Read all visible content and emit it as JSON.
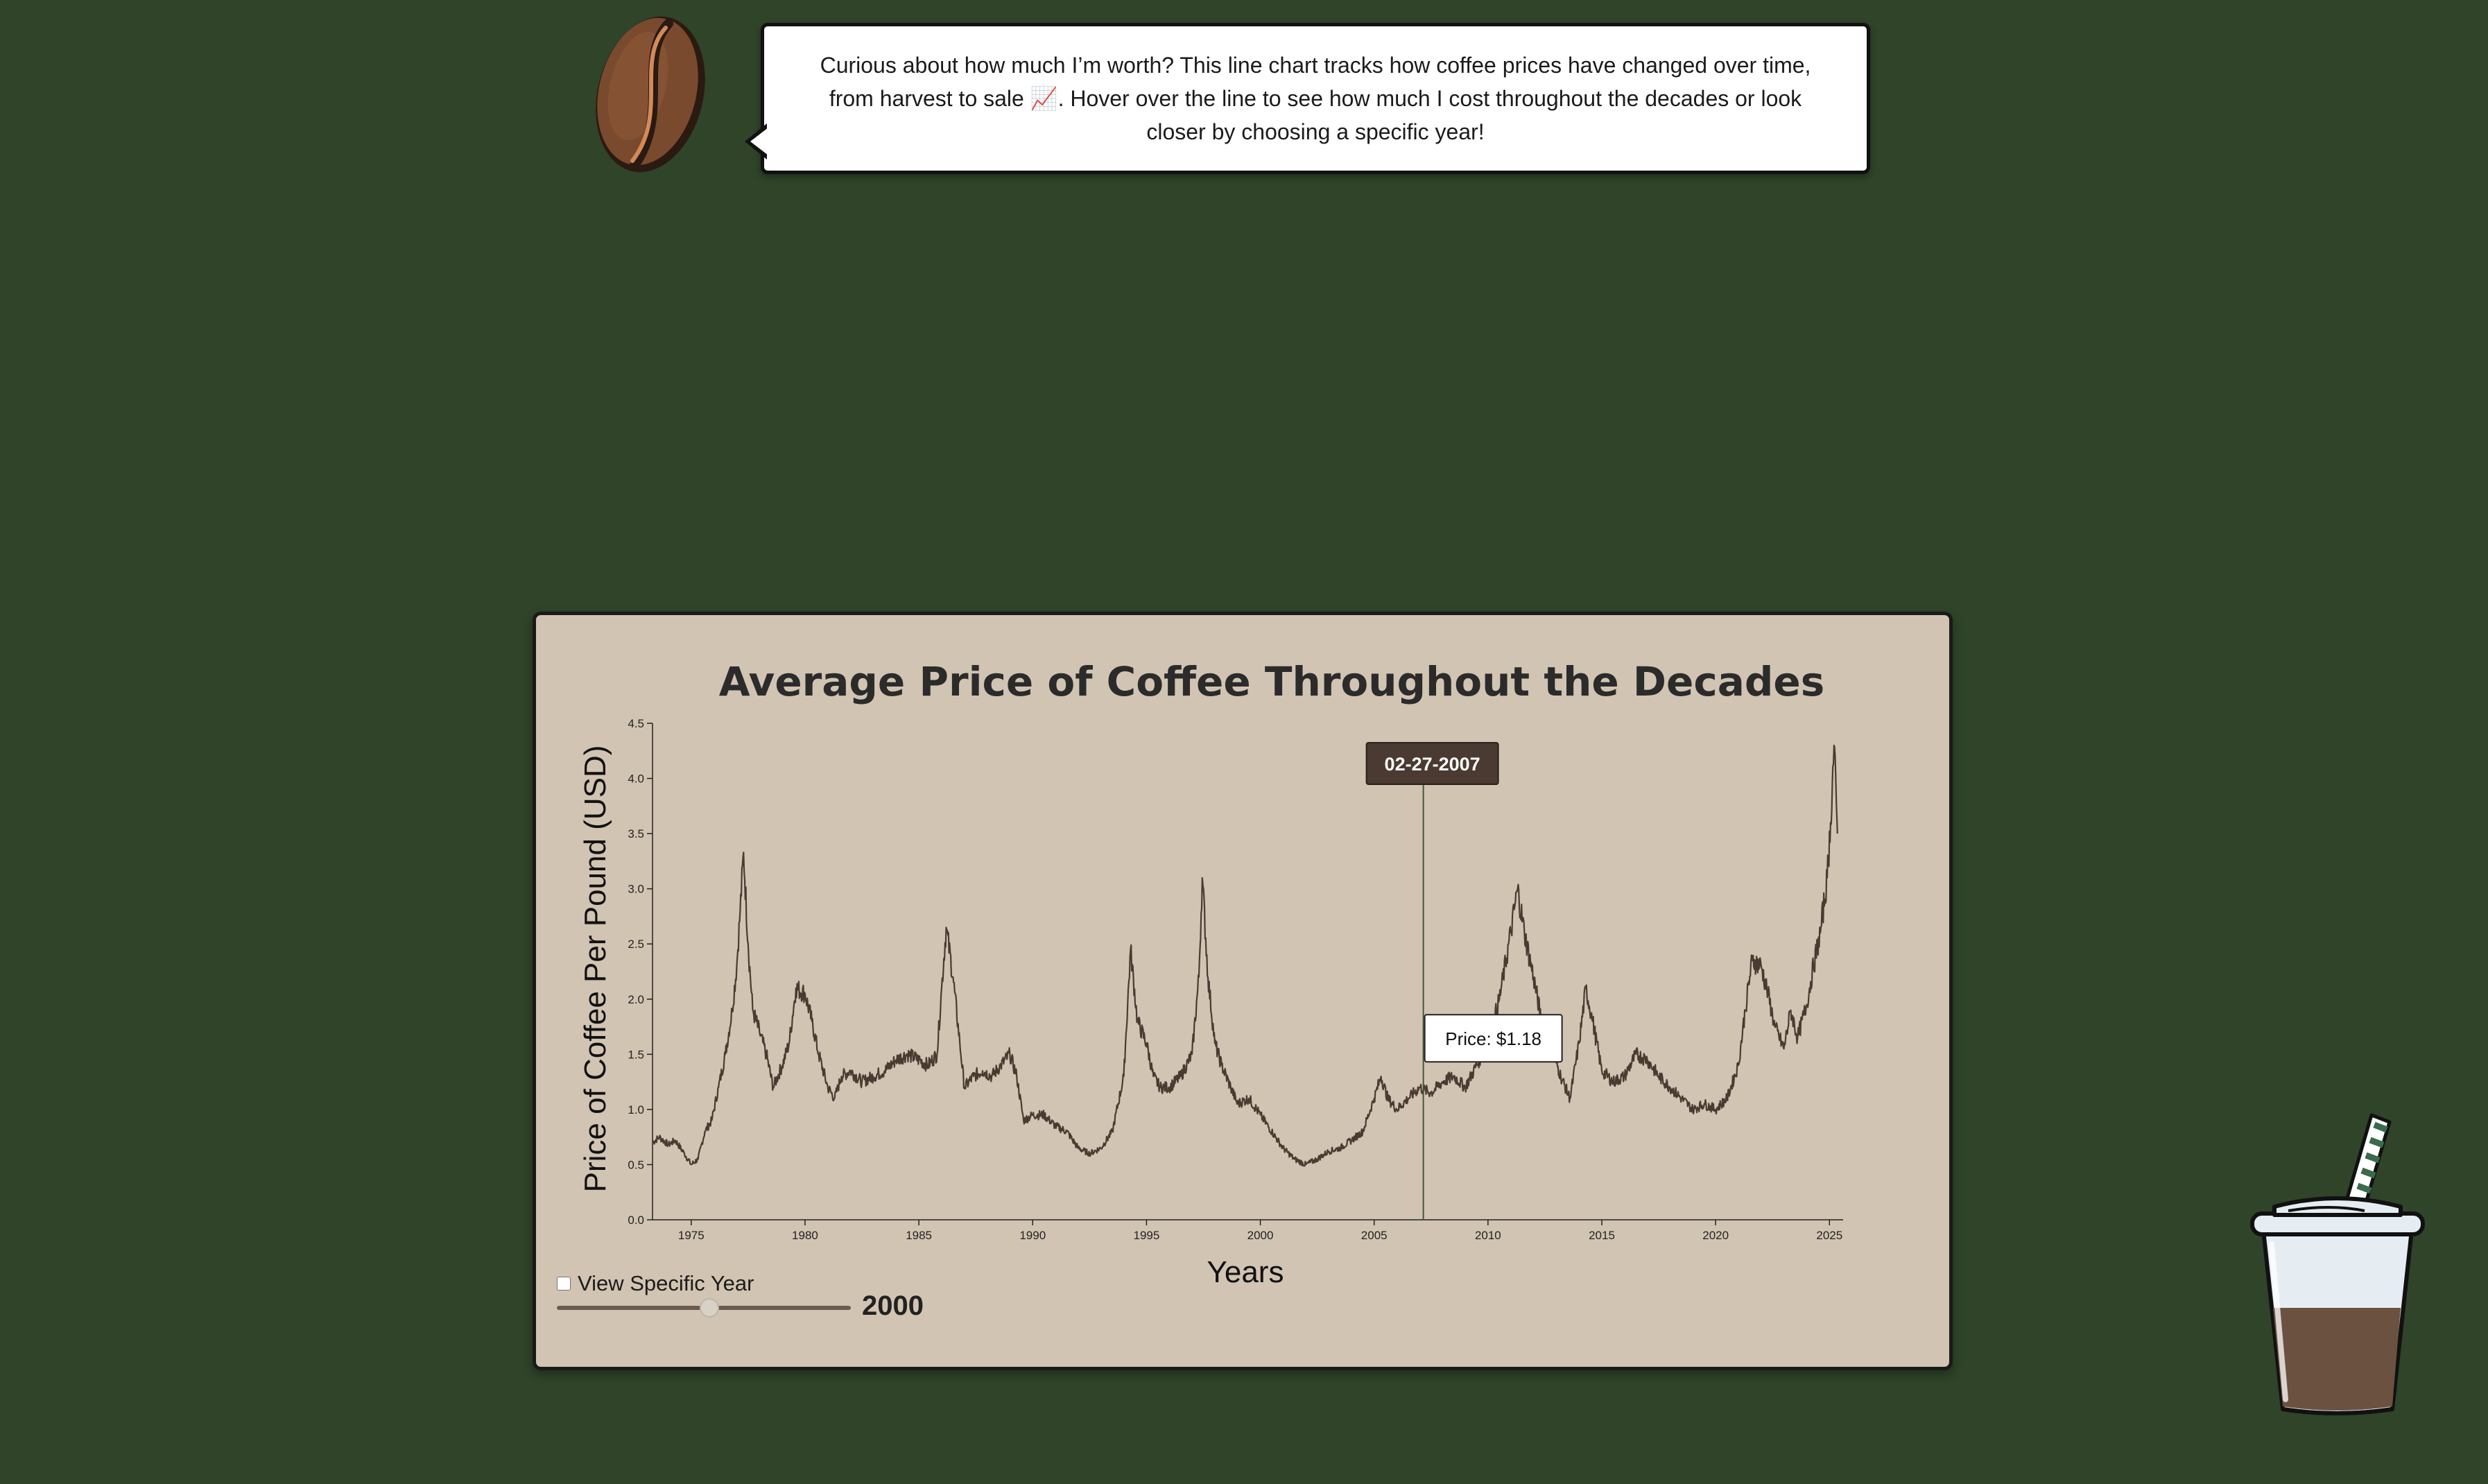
{
  "intro": {
    "bubble_text": "Curious about how much I’m worth? This line chart tracks how coffee prices have changed over time, from harvest to sale 📈. Hover over the line to see how much I cost throughout the decades or look closer by choosing a specific year!"
  },
  "chart": {
    "title": "Average Price of Coffee Throughout the Decades",
    "ylabel": "Price of Coffee Per Pound (USD)",
    "xlabel": "Years",
    "tooltip_date": "02-27-2007",
    "tooltip_price": "Price: $1.18"
  },
  "controls": {
    "checkbox_label": "View Specific Year",
    "slider_value": "2000",
    "slider_min": 1973,
    "slider_max": 2025,
    "checked": false
  },
  "colors": {
    "background": "#2f4429",
    "card": "#d2c4b2",
    "line": "#4a3b32",
    "hover_line": "#3d5a36",
    "tooltip_dark": "#4a3a31",
    "coffee": "#6b5140",
    "bean": "#7a4a2e"
  },
  "chart_data": {
    "type": "line",
    "title": "Average Price of Coffee Throughout the Decades",
    "xlabel": "Years",
    "ylabel": "Price of Coffee Per Pound (USD)",
    "xlim": [
      1973.3,
      2025.6
    ],
    "ylim": [
      0,
      4.5
    ],
    "xticks": [
      1975,
      1980,
      1985,
      1990,
      1995,
      2000,
      2005,
      2010,
      2015,
      2020,
      2025
    ],
    "yticks": [
      "0.0",
      "0.5",
      "1.0",
      "1.5",
      "2.0",
      "2.5",
      "3.0",
      "3.5",
      "4.0",
      "4.5"
    ],
    "grid": false,
    "legend": "none",
    "hover": {
      "x": 2007.16,
      "y": 1.18,
      "date": "02-27-2007",
      "price": "$1.18"
    },
    "x": [
      1973.3,
      1973.6,
      1974.0,
      1974.3,
      1974.7,
      1975.0,
      1975.3,
      1975.6,
      1975.9,
      1976.2,
      1976.5,
      1976.8,
      1977.0,
      1977.15,
      1977.3,
      1977.5,
      1977.7,
      1978.0,
      1978.3,
      1978.6,
      1979.0,
      1979.3,
      1979.6,
      1980.0,
      1980.3,
      1980.6,
      1981.0,
      1981.3,
      1981.6,
      1982.0,
      1982.5,
      1983.0,
      1983.5,
      1984.0,
      1984.5,
      1985.0,
      1985.4,
      1985.8,
      1986.0,
      1986.2,
      1986.5,
      1986.8,
      1987.0,
      1987.4,
      1987.8,
      1988.2,
      1988.6,
      1989.0,
      1989.3,
      1989.6,
      1990.0,
      1990.5,
      1991.0,
      1991.5,
      1992.0,
      1992.5,
      1993.0,
      1993.5,
      1994.0,
      1994.3,
      1994.6,
      1995.0,
      1995.3,
      1995.6,
      1996.0,
      1996.5,
      1997.0,
      1997.3,
      1997.45,
      1997.7,
      1998.0,
      1998.3,
      1998.7,
      1999.0,
      1999.5,
      2000.0,
      2000.5,
      2001.0,
      2001.5,
      2002.0,
      2002.5,
      2003.0,
      2003.5,
      2004.0,
      2004.5,
      2005.0,
      2005.3,
      2005.6,
      2006.0,
      2006.5,
      2007.0,
      2007.16,
      2007.5,
      2008.0,
      2008.5,
      2009.0,
      2009.5,
      2010.0,
      2010.5,
      2011.0,
      2011.3,
      2011.6,
      2012.0,
      2012.4,
      2012.8,
      2013.2,
      2013.6,
      2014.0,
      2014.3,
      2014.6,
      2015.0,
      2015.5,
      2016.0,
      2016.5,
      2017.0,
      2017.5,
      2018.0,
      2018.5,
      2019.0,
      2019.5,
      2020.0,
      2020.5,
      2021.0,
      2021.3,
      2021.6,
      2022.0,
      2022.3,
      2022.6,
      2023.0,
      2023.3,
      2023.6,
      2024.0,
      2024.3,
      2024.6,
      2024.9,
      2025.05,
      2025.2,
      2025.35
    ],
    "y": [
      0.7,
      0.75,
      0.68,
      0.72,
      0.6,
      0.5,
      0.55,
      0.8,
      0.9,
      1.2,
      1.5,
      1.9,
      2.3,
      2.8,
      3.33,
      2.5,
      1.9,
      1.7,
      1.5,
      1.2,
      1.4,
      1.6,
      2.1,
      2.05,
      1.8,
      1.5,
      1.2,
      1.1,
      1.3,
      1.35,
      1.25,
      1.3,
      1.35,
      1.45,
      1.5,
      1.45,
      1.4,
      1.5,
      2.1,
      2.65,
      2.2,
      1.6,
      1.2,
      1.3,
      1.35,
      1.3,
      1.4,
      1.5,
      1.3,
      0.9,
      0.95,
      0.95,
      0.85,
      0.8,
      0.65,
      0.6,
      0.65,
      0.8,
      1.3,
      2.45,
      1.8,
      1.6,
      1.3,
      1.2,
      1.2,
      1.3,
      1.5,
      2.2,
      3.1,
      2.2,
      1.6,
      1.4,
      1.2,
      1.05,
      1.1,
      0.95,
      0.8,
      0.65,
      0.55,
      0.5,
      0.55,
      0.62,
      0.65,
      0.72,
      0.8,
      1.1,
      1.3,
      1.1,
      1.0,
      1.1,
      1.2,
      1.18,
      1.15,
      1.25,
      1.3,
      1.2,
      1.4,
      1.6,
      2.0,
      2.6,
      3.0,
      2.6,
      2.2,
      1.75,
      1.55,
      1.3,
      1.1,
      1.6,
      2.1,
      1.8,
      1.35,
      1.25,
      1.3,
      1.5,
      1.45,
      1.3,
      1.2,
      1.1,
      1.0,
      1.05,
      1.0,
      1.1,
      1.4,
      1.9,
      2.35,
      2.3,
      2.05,
      1.75,
      1.55,
      1.9,
      1.65,
      1.95,
      2.3,
      2.6,
      3.1,
      3.6,
      4.3,
      3.5
    ]
  }
}
